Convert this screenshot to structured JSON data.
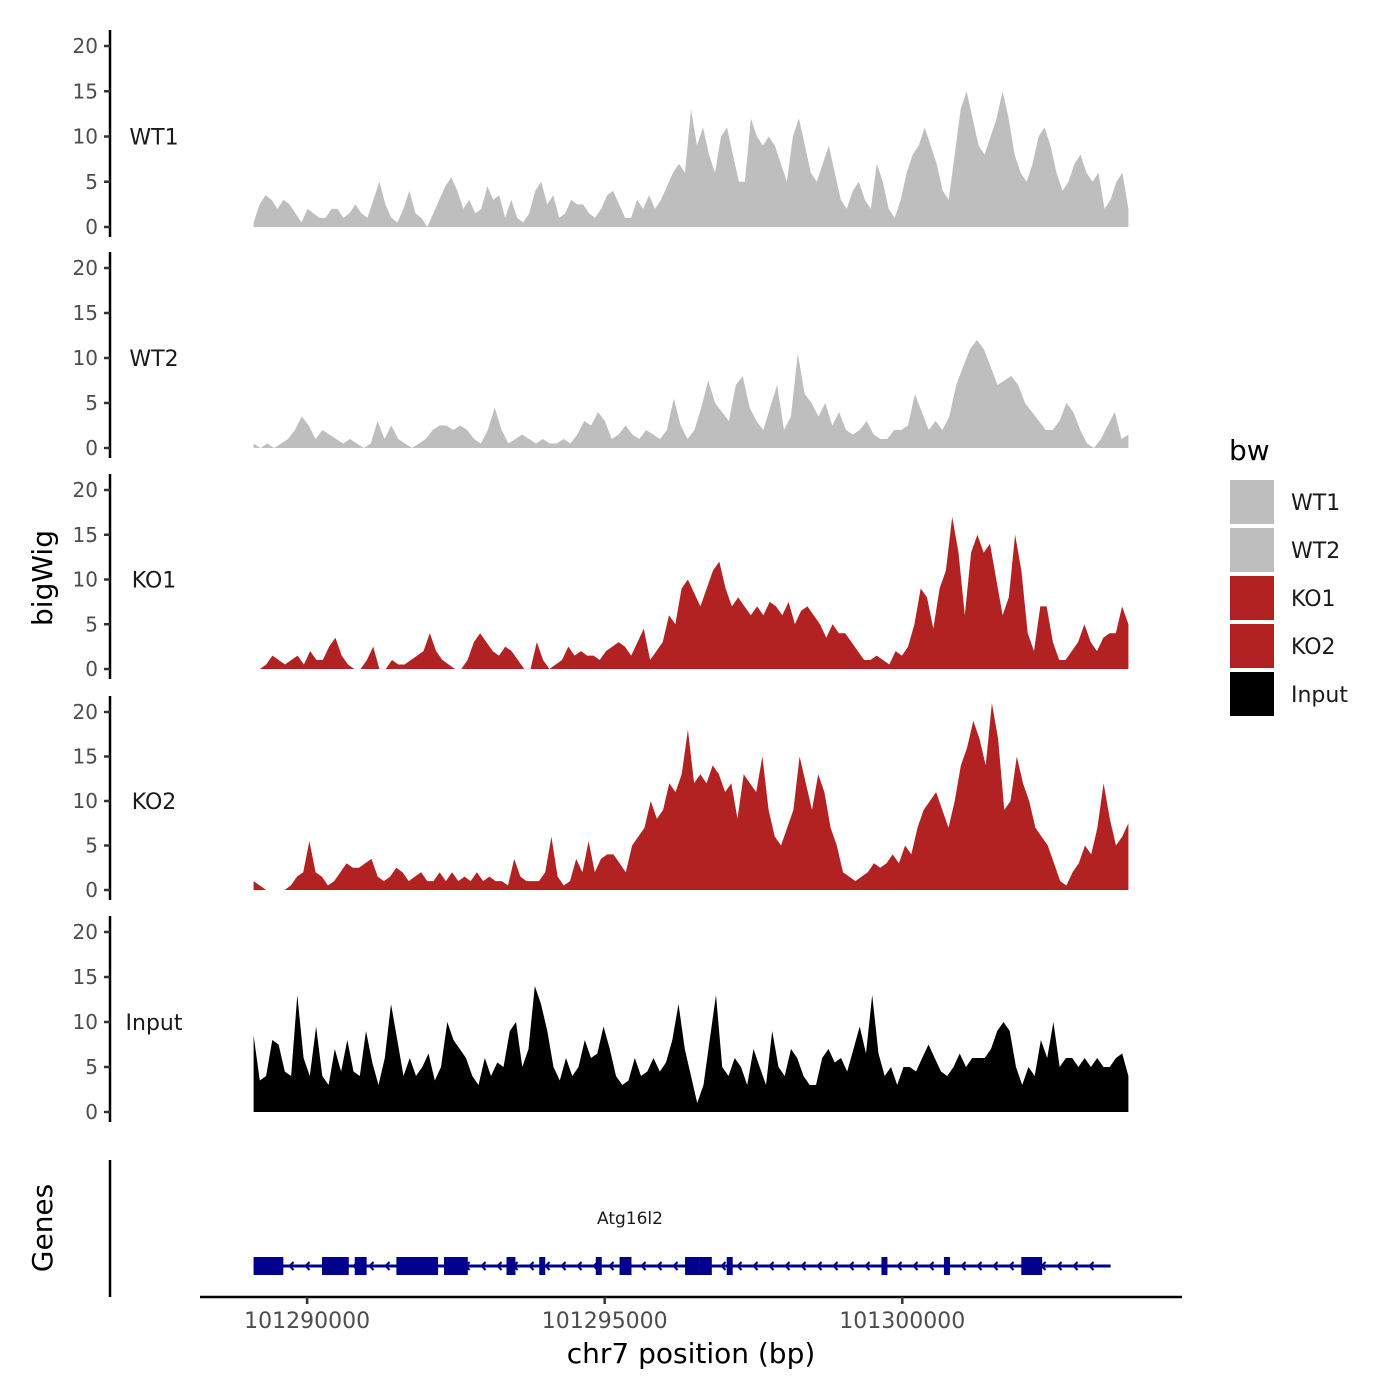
{
  "chart_data": {
    "type": "area",
    "ylabel": "bigWig",
    "xlabel": "chr7 position (bp)",
    "ylim": [
      0,
      20
    ],
    "yticks": [
      0,
      5,
      10,
      15,
      20
    ],
    "xlim": [
      101288200,
      101304700
    ],
    "xticks": [
      101290000,
      101295000,
      101300000
    ],
    "x_start": 101289100,
    "x_end": 101303800,
    "legend": {
      "title": "bw",
      "position": "right",
      "entries": [
        {
          "label": "WT1",
          "color": "#bebebe"
        },
        {
          "label": "WT2",
          "color": "#bebebe"
        },
        {
          "label": "KO1",
          "color": "#b22222"
        },
        {
          "label": "KO2",
          "color": "#b22222"
        },
        {
          "label": "Input",
          "color": "#000000"
        }
      ]
    },
    "series": [
      {
        "name": "WT1",
        "color": "#bebebe",
        "values": [
          0.5,
          2.5,
          3.5,
          3,
          2,
          3,
          2.5,
          1.5,
          0.5,
          2,
          1.5,
          1,
          1,
          2,
          2,
          1,
          1.5,
          2.5,
          1.5,
          1,
          3,
          5,
          2.5,
          1,
          0.5,
          2,
          4,
          1.5,
          1,
          0,
          1.5,
          3,
          4.5,
          5.5,
          4,
          2,
          3,
          1.5,
          2,
          4.5,
          3,
          3.5,
          1,
          3,
          1,
          0.5,
          1.5,
          4,
          5,
          2.5,
          3.5,
          1,
          1.5,
          3,
          2.5,
          2.5,
          1.5,
          1,
          2,
          3.5,
          4,
          2.5,
          1,
          1,
          3,
          2,
          3.5,
          2,
          3,
          4.5,
          6,
          7,
          6,
          13,
          9,
          11,
          8,
          6,
          10,
          11,
          8,
          5,
          5,
          12,
          10,
          9,
          10,
          9,
          7,
          5,
          10,
          12,
          9,
          6,
          5,
          7,
          9,
          6,
          3,
          2,
          4,
          5,
          3,
          2,
          7,
          5,
          2,
          1,
          3,
          6,
          8,
          9,
          11,
          9,
          7,
          4,
          3,
          8,
          13,
          15,
          12,
          9,
          8,
          10,
          12,
          15,
          12,
          8,
          6,
          5,
          7,
          10,
          11,
          9,
          6,
          4,
          5,
          7,
          8,
          6,
          5,
          6,
          2,
          3,
          5,
          6,
          2
        ]
      },
      {
        "name": "WT2",
        "color": "#bebebe",
        "values": [
          0.5,
          0,
          0.5,
          0,
          0.5,
          1,
          2,
          3.5,
          2.5,
          1,
          2,
          1.5,
          1,
          0.5,
          1,
          0.5,
          0,
          0.5,
          3,
          1,
          2.5,
          1,
          0.5,
          0,
          0.5,
          1,
          2,
          2.5,
          2.5,
          2,
          2.5,
          2,
          1,
          0.5,
          2,
          4.5,
          2,
          0.5,
          1,
          1.5,
          1,
          0.5,
          1,
          0.5,
          0.5,
          1,
          0.5,
          1.5,
          3,
          2.5,
          4,
          3,
          1,
          1.5,
          2.5,
          1.5,
          1,
          2,
          1.5,
          1,
          2,
          5.5,
          2.5,
          1,
          2,
          4.5,
          7.5,
          5,
          4,
          3,
          7,
          8,
          4.5,
          3,
          2,
          4.5,
          7,
          2,
          3.5,
          10.5,
          6,
          5,
          3.5,
          5,
          2.5,
          4,
          2,
          1.5,
          2,
          3,
          1.5,
          1,
          1,
          2,
          2,
          2.5,
          6,
          4,
          2,
          3,
          2,
          3.5,
          7,
          9,
          11,
          12,
          11,
          9,
          7,
          7.5,
          8,
          7,
          5,
          4,
          3,
          2,
          2,
          3,
          5,
          4,
          2,
          0.5,
          0,
          1,
          2.5,
          4,
          1,
          1.5
        ]
      },
      {
        "name": "KO1",
        "color": "#b22222",
        "values": [
          0,
          0,
          0.5,
          1.5,
          1,
          0.5,
          1,
          1.5,
          0.5,
          2,
          1,
          1,
          2.5,
          3.5,
          1.5,
          0.5,
          0,
          0,
          1,
          2.5,
          0,
          0,
          1,
          0.5,
          0.5,
          1,
          1.5,
          2,
          4,
          2,
          1,
          0.5,
          0,
          0,
          1,
          3,
          4,
          3,
          2,
          1.5,
          2.5,
          2,
          1,
          0,
          0,
          3,
          1,
          0,
          0.5,
          1,
          2.5,
          1.5,
          2,
          1.5,
          1.5,
          1,
          2,
          2.5,
          3,
          2.5,
          1.5,
          3,
          4.5,
          1,
          2,
          3,
          6,
          5,
          9,
          10,
          8.5,
          7,
          9,
          11,
          12,
          9,
          7,
          8,
          7,
          6,
          7,
          6,
          7.5,
          7,
          6,
          7.5,
          5,
          6.5,
          7,
          6,
          5,
          3.5,
          5,
          4,
          4,
          3,
          2,
          1,
          1,
          1.5,
          1,
          0.5,
          2,
          1.5,
          2.5,
          5,
          9,
          8,
          4.5,
          9,
          11,
          17,
          13,
          6,
          13,
          15,
          13,
          14,
          10,
          6,
          8,
          15,
          11,
          4,
          2,
          7,
          7,
          3,
          1,
          1,
          2,
          3,
          5,
          3,
          2,
          3.5,
          4,
          4,
          7,
          5
        ]
      },
      {
        "name": "KO2",
        "color": "#b22222",
        "values": [
          1,
          0.5,
          0,
          0,
          0,
          0,
          0.5,
          1.5,
          2,
          5.5,
          2,
          1.5,
          0.5,
          1,
          2,
          3,
          2.5,
          2.5,
          3,
          3.5,
          1.5,
          1,
          1.5,
          2.5,
          2,
          1,
          1.5,
          2,
          1,
          1,
          2,
          1,
          2,
          1,
          1.5,
          1,
          2,
          1,
          1.5,
          1,
          1,
          0.5,
          3.5,
          1.5,
          1,
          1,
          1,
          2,
          6,
          1.5,
          0.5,
          1,
          3.5,
          2,
          5.5,
          2,
          3.5,
          4,
          4,
          3,
          2,
          5,
          6,
          7,
          10,
          8,
          9,
          12,
          11,
          13,
          18,
          12,
          13,
          12,
          14,
          13,
          11,
          12,
          8,
          13,
          12,
          11,
          15,
          9,
          6,
          5,
          7,
          9,
          15,
          12,
          9,
          13,
          11,
          7,
          5,
          2,
          1.5,
          1,
          1.5,
          2,
          3,
          2.5,
          3,
          4,
          3,
          5,
          4,
          7,
          9,
          10,
          11,
          9,
          7,
          10,
          14,
          16,
          19,
          17,
          14,
          21,
          17,
          9,
          10,
          15,
          12,
          10,
          7,
          6,
          5,
          3,
          1,
          0.5,
          2,
          3,
          5,
          4,
          7,
          12,
          8,
          5,
          6,
          7.5
        ]
      },
      {
        "name": "Input",
        "color": "#000000",
        "values": [
          8.5,
          3.5,
          4,
          8,
          7.5,
          4.5,
          4,
          13,
          6,
          4,
          9.5,
          4,
          3,
          7,
          4.5,
          8,
          4.5,
          4,
          9,
          5.5,
          3,
          6,
          12,
          8,
          4,
          6,
          4,
          5,
          6.5,
          3.5,
          5,
          10,
          8,
          7,
          6,
          4,
          3,
          6,
          4,
          5.5,
          5,
          9,
          10,
          5,
          7,
          14,
          12,
          9,
          5,
          3.5,
          6,
          4,
          5,
          8,
          6,
          6.5,
          9.5,
          7,
          4,
          3,
          3.5,
          6,
          4,
          4.5,
          6,
          4.5,
          5.5,
          8,
          12,
          7,
          4,
          1,
          3,
          8,
          13,
          5,
          4,
          6,
          5,
          3,
          7,
          5,
          3,
          9,
          5,
          4,
          7,
          6,
          4,
          3,
          3,
          6,
          7,
          5.5,
          6,
          4.5,
          7,
          9.5,
          6.5,
          13,
          6.5,
          4,
          5,
          3,
          5,
          5,
          4.5,
          6,
          7.5,
          6,
          4.5,
          4,
          5,
          6.5,
          5,
          6,
          6,
          6,
          7,
          9,
          10,
          9,
          5,
          3,
          5,
          4,
          8,
          6,
          10,
          5,
          6,
          6,
          5,
          6,
          5,
          6,
          5,
          5,
          6,
          6.5,
          4
        ]
      }
    ]
  },
  "genes": {
    "title": "Genes",
    "gene_name": "Atg16l2",
    "color": "#00008b",
    "start": 101289100,
    "end": 101303500,
    "strand": "-",
    "exons": [
      [
        101289100,
        101289600
      ],
      [
        101290250,
        101290700
      ],
      [
        101290800,
        101291000
      ],
      [
        101291500,
        101292200
      ],
      [
        101292300,
        101292700
      ],
      [
        101293350,
        101293500
      ],
      [
        101293900,
        101294000
      ],
      [
        101294850,
        101294950
      ],
      [
        101295250,
        101295450
      ],
      [
        101296350,
        101296600
      ],
      [
        101296600,
        101296800
      ],
      [
        101297050,
        101297150
      ],
      [
        101299650,
        101299750
      ],
      [
        101300700,
        101300800
      ],
      [
        101302000,
        101302350
      ]
    ]
  }
}
